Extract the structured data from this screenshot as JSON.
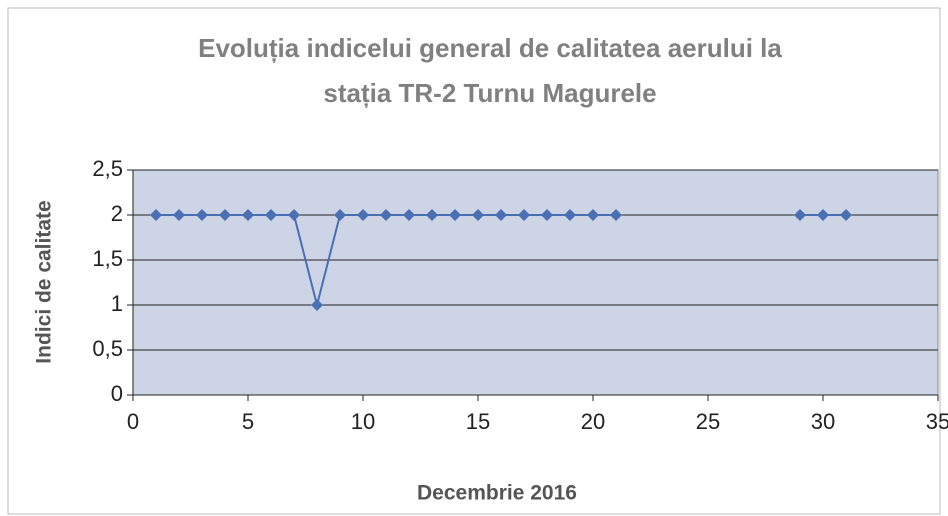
{
  "chart_data": {
    "type": "line",
    "title": [
      "Evoluția indicelui general de calitatea aerului la",
      "stația TR-2 Turnu Magurele"
    ],
    "x_label": "Decembrie 2016",
    "y_label": "Indici de calitate",
    "x": [
      1,
      2,
      3,
      4,
      5,
      6,
      7,
      8,
      9,
      10,
      11,
      12,
      13,
      14,
      15,
      16,
      17,
      18,
      19,
      20,
      21,
      22,
      23,
      24,
      25,
      26,
      27,
      28,
      29,
      30,
      31
    ],
    "series": [
      {
        "color": "#4a6fb3",
        "values": [
          2,
          2,
          2,
          2,
          2,
          2,
          2,
          1,
          2,
          2,
          2,
          2,
          2,
          2,
          2,
          2,
          2,
          2,
          2,
          2,
          2,
          null,
          null,
          null,
          null,
          null,
          null,
          null,
          2,
          2,
          2
        ]
      }
    ],
    "xlim": [
      0,
      35
    ],
    "xticks": [
      0,
      5,
      10,
      15,
      20,
      25,
      30,
      35
    ],
    "ylim": [
      0,
      2.5
    ],
    "yticks": [
      0,
      {
        "value": 0.5,
        "label": "0,5"
      },
      1,
      {
        "value": 1.5,
        "label": "1,5"
      },
      2,
      {
        "value": 2.5,
        "label": "2,5"
      }
    ],
    "grid": true,
    "plot_background": "#cdd4e6"
  }
}
